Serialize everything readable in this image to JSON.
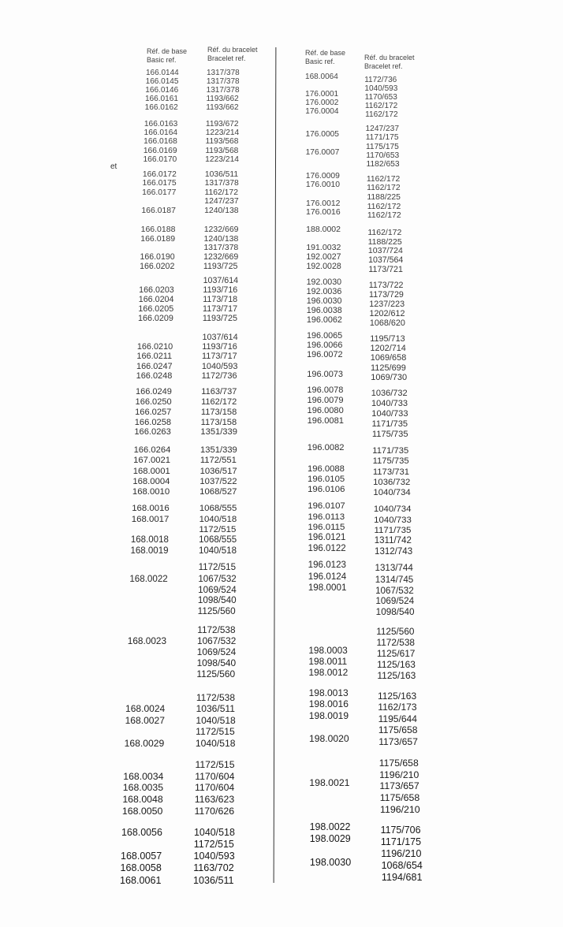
{
  "margin_fragment": "et",
  "left": {
    "header": {
      "base_fr": "Réf. de base",
      "base_en": "Basic ref.",
      "bracelet_fr": "Réf. du bracelet",
      "bracelet_en": "Bracelet ref."
    },
    "groups": [
      [
        [
          "166.0144",
          "1317/378"
        ],
        [
          "166.0145",
          "1317/378"
        ],
        [
          "166.0146",
          "1317/378"
        ],
        [
          "166.0161",
          "1193/662"
        ],
        [
          "166.0162",
          "1193/662"
        ]
      ],
      [
        [
          "166.0163",
          "1193/672"
        ],
        [
          "166.0164",
          "1223/214"
        ],
        [
          "166.0168",
          "1193/568"
        ],
        [
          "166.0169",
          "1193/568"
        ],
        [
          "166.0170",
          "1223/214"
        ]
      ],
      [
        [
          "166.0172",
          "1036/511"
        ],
        [
          "166.0175",
          "1317/378"
        ],
        [
          "166.0177",
          "1162/172"
        ],
        [
          "",
          "1247/237"
        ],
        [
          "166.0187",
          "1240/138"
        ]
      ],
      [
        [
          "166.0188",
          "1232/669"
        ],
        [
          "166.0189",
          "1240/138"
        ],
        [
          "",
          "1317/378"
        ],
        [
          "166.0190",
          "1232/669"
        ],
        [
          "166.0202",
          "1193/725"
        ]
      ],
      [
        [
          "",
          "1037/614"
        ],
        [
          "166.0203",
          "1193/716"
        ],
        [
          "166.0204",
          "1173/718"
        ],
        [
          "166.0205",
          "1173/717"
        ],
        [
          "166.0209",
          "1193/725"
        ]
      ],
      [
        [
          "",
          "1037/614"
        ],
        [
          "166.0210",
          "1193/716"
        ],
        [
          "166.0211",
          "1173/717"
        ],
        [
          "166.0247",
          "1040/593"
        ],
        [
          "166.0248",
          "1172/736"
        ]
      ],
      [
        [
          "166.0249",
          "1163/737"
        ],
        [
          "166.0250",
          "1162/172"
        ],
        [
          "166.0257",
          "1173/158"
        ],
        [
          "166.0258",
          "1173/158"
        ],
        [
          "166.0263",
          "1351/339"
        ]
      ],
      [
        [
          "166.0264",
          "1351/339"
        ],
        [
          "167.0021",
          "1172/551"
        ],
        [
          "168.0001",
          "1036/517"
        ],
        [
          "168.0004",
          "1037/522"
        ],
        [
          "168.0010",
          "1068/527"
        ]
      ],
      [
        [
          "168.0016",
          "1068/555"
        ],
        [
          "168.0017",
          "1040/518"
        ],
        [
          "",
          "1172/515"
        ],
        [
          "168.0018",
          "1068/555"
        ],
        [
          "168.0019",
          "1040/518"
        ]
      ],
      [
        [
          "",
          "1172/515"
        ],
        [
          "168.0022",
          "1067/532"
        ],
        [
          "",
          "1069/524"
        ],
        [
          "",
          "1098/540"
        ],
        [
          "",
          "1125/560"
        ]
      ],
      [
        [
          "",
          "1172/538"
        ],
        [
          "168.0023",
          "1067/532"
        ],
        [
          "",
          "1069/524"
        ],
        [
          "",
          "1098/540"
        ],
        [
          "",
          "1125/560"
        ]
      ],
      [
        [
          "",
          "1172/538"
        ],
        [
          "168.0024",
          "1036/511"
        ],
        [
          "168.0027",
          "1040/518"
        ],
        [
          "",
          "1172/515"
        ],
        [
          "168.0029",
          "1040/518"
        ]
      ],
      [
        [
          "",
          "1172/515"
        ],
        [
          "168.0034",
          "1170/604"
        ],
        [
          "168.0035",
          "1170/604"
        ],
        [
          "168.0048",
          "1163/623"
        ],
        [
          "168.0050",
          "1170/626"
        ]
      ],
      [
        [
          "168.0056",
          "1040/518"
        ],
        [
          "",
          "1172/515"
        ],
        [
          "168.0057",
          "1040/593"
        ],
        [
          "168.0058",
          "1163/702"
        ],
        [
          "168.0061",
          "1036/511"
        ]
      ]
    ]
  },
  "right": {
    "header": {
      "base_fr": "Réf. de base",
      "base_en": "Basic ref.",
      "bracelet_fr": "Réf. du bracelet",
      "bracelet_en": "Bracelet ref."
    },
    "groups": [
      [
        [
          "168.0064",
          "1172/736"
        ],
        [
          "",
          "1040/593"
        ],
        [
          "176.0001",
          "1170/653"
        ],
        [
          "176.0002",
          "1162/172"
        ],
        [
          "176.0004",
          "1162/172"
        ]
      ],
      [
        [
          "",
          "1247/237"
        ],
        [
          "176.0005",
          "1171/175"
        ],
        [
          "",
          "1175/175"
        ],
        [
          "176.0007",
          "1170/653"
        ],
        [
          "",
          "1182/653"
        ]
      ],
      [
        [
          "176.0009",
          "1162/172"
        ],
        [
          "176.0010",
          "1162/172"
        ],
        [
          "",
          "1188/225"
        ],
        [
          "176.0012",
          "1162/172"
        ],
        [
          "176.0016",
          "1162/172"
        ]
      ],
      [
        [
          "188.0002",
          "1162/172"
        ],
        [
          "",
          "1188/225"
        ],
        [
          "191.0032",
          "1037/724"
        ],
        [
          "192.0027",
          "1037/564"
        ],
        [
          "192.0028",
          "1173/721"
        ]
      ],
      [
        [
          "192.0030",
          "1173/722"
        ],
        [
          "192.0036",
          "1173/729"
        ],
        [
          "196.0030",
          "1237/223"
        ],
        [
          "196.0038",
          "1202/612"
        ],
        [
          "196.0062",
          "1068/620"
        ]
      ],
      [
        [
          "196.0065",
          "1195/713"
        ],
        [
          "196.0066",
          "1202/714"
        ],
        [
          "196.0072",
          "1069/658"
        ],
        [
          "",
          "1125/699"
        ],
        [
          "196.0073",
          "1069/730"
        ]
      ],
      [
        [
          "196.0078",
          "1036/732"
        ],
        [
          "196.0079",
          "1040/733"
        ],
        [
          "196.0080",
          "1040/733"
        ],
        [
          "196.0081",
          "1171/735"
        ],
        [
          "",
          "1175/735"
        ]
      ],
      [
        [
          "196.0082",
          "1171/735"
        ],
        [
          "",
          "1175/735"
        ],
        [
          "196.0088",
          "1173/731"
        ],
        [
          "196.0105",
          "1036/732"
        ],
        [
          "196.0106",
          "1040/734"
        ]
      ],
      [
        [
          "196.0107",
          "1040/734"
        ],
        [
          "196.0113",
          "1040/733"
        ],
        [
          "196.0115",
          "1171/735"
        ],
        [
          "196.0121",
          "1311/742"
        ],
        [
          "196.0122",
          "1312/743"
        ]
      ],
      [
        [
          "196.0123",
          "1313/744"
        ],
        [
          "196.0124",
          "1314/745"
        ],
        [
          "198.0001",
          "1067/532"
        ],
        [
          "",
          "1069/524"
        ],
        [
          "",
          "1098/540"
        ]
      ],
      [
        [
          "",
          "1125/560"
        ],
        [
          "",
          "1172/538"
        ],
        [
          "198.0003",
          "1125/617"
        ],
        [
          "198.0011",
          "1125/163"
        ],
        [
          "198.0012",
          "1125/163"
        ]
      ],
      [
        [
          "198.0013",
          "1125/163"
        ],
        [
          "198.0016",
          "1162/173"
        ],
        [
          "198.0019",
          "1195/644"
        ],
        [
          "",
          "1175/658"
        ],
        [
          "198.0020",
          "1173/657"
        ]
      ],
      [
        [
          "",
          "1175/658"
        ],
        [
          "",
          "1196/210"
        ],
        [
          "198.0021",
          "1173/657"
        ],
        [
          "",
          "1175/658"
        ],
        [
          "",
          "1196/210"
        ]
      ],
      [
        [
          "198.0022",
          "1175/706"
        ],
        [
          "198.0029",
          "1171/175"
        ],
        [
          "",
          "1196/210"
        ],
        [
          "198.0030",
          "1068/654"
        ],
        [
          "",
          "1194/681"
        ]
      ]
    ]
  }
}
